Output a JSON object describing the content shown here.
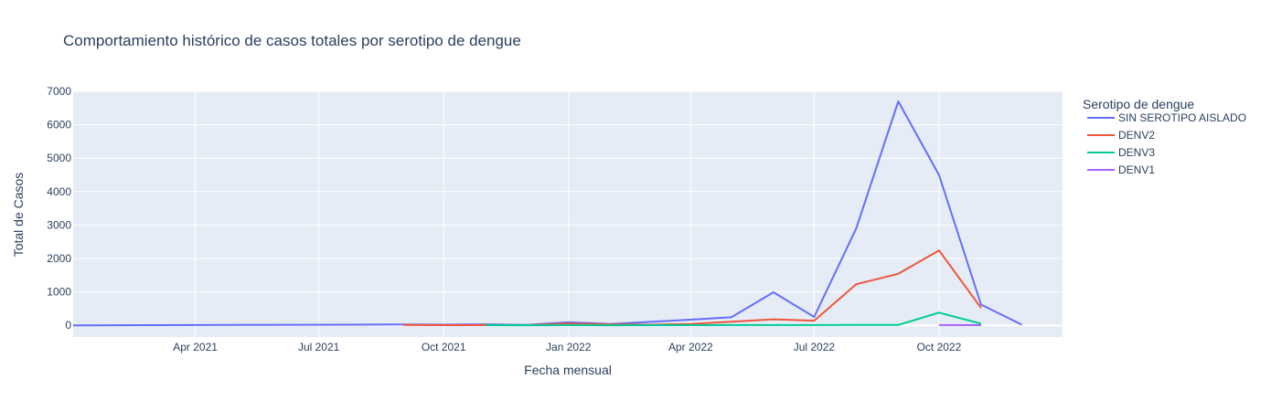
{
  "chart_data": {
    "type": "line",
    "title": "Comportamiento histórico de casos totales por serotipo de dengue",
    "xlabel": "Fecha mensual",
    "ylabel": "Total de Casos",
    "legend_title": "Serotipo de dengue",
    "legend_position": "right",
    "grid": true,
    "background_color": "#e5ecf6",
    "xlim": [
      "2021-01-01",
      "2022-12-31"
    ],
    "ylim": [
      -350,
      7000
    ],
    "x_ticks": [
      {
        "date": "2021-04-01",
        "label": "Apr 2021"
      },
      {
        "date": "2021-07-01",
        "label": "Jul 2021"
      },
      {
        "date": "2021-10-01",
        "label": "Oct 2021"
      },
      {
        "date": "2022-01-01",
        "label": "Jan 2022"
      },
      {
        "date": "2022-04-01",
        "label": "Apr 2022"
      },
      {
        "date": "2022-07-01",
        "label": "Jul 2022"
      },
      {
        "date": "2022-10-01",
        "label": "Oct 2022"
      }
    ],
    "y_ticks": [
      {
        "value": 0,
        "label": "0"
      },
      {
        "value": 1000,
        "label": "1000"
      },
      {
        "value": 2000,
        "label": "2000"
      },
      {
        "value": 3000,
        "label": "3000"
      },
      {
        "value": 4000,
        "label": "4000"
      },
      {
        "value": 5000,
        "label": "5000"
      },
      {
        "value": 6000,
        "label": "6000"
      },
      {
        "value": 7000,
        "label": "7000"
      }
    ],
    "series": [
      {
        "name": "SIN SEROTIPO AISLADO",
        "color": "#636efa",
        "points": [
          [
            "2021-01-01",
            1
          ],
          [
            "2021-09-01",
            25
          ],
          [
            "2021-10-01",
            20
          ],
          [
            "2021-11-01",
            30
          ],
          [
            "2021-12-01",
            10
          ],
          [
            "2022-01-01",
            90
          ],
          [
            "2022-02-01",
            40
          ],
          [
            "2022-03-01",
            100
          ],
          [
            "2022-04-01",
            170
          ],
          [
            "2022-05-01",
            240
          ],
          [
            "2022-06-01",
            990
          ],
          [
            "2022-07-01",
            250
          ],
          [
            "2022-08-01",
            2900
          ],
          [
            "2022-09-01",
            6700
          ],
          [
            "2022-10-01",
            4500
          ],
          [
            "2022-11-01",
            620
          ],
          [
            "2022-12-01",
            20
          ]
        ]
      },
      {
        "name": "DENV2",
        "color": "#ef553b",
        "points": [
          [
            "2021-09-01",
            10
          ],
          [
            "2021-10-01",
            5
          ],
          [
            "2021-11-01",
            8
          ],
          [
            "2021-12-01",
            5
          ],
          [
            "2022-01-01",
            50
          ],
          [
            "2022-02-01",
            30
          ],
          [
            "2022-03-01",
            20
          ],
          [
            "2022-04-01",
            40
          ],
          [
            "2022-05-01",
            110
          ],
          [
            "2022-06-01",
            180
          ],
          [
            "2022-07-01",
            140
          ],
          [
            "2022-08-01",
            1230
          ],
          [
            "2022-09-01",
            1540
          ],
          [
            "2022-10-01",
            2240
          ],
          [
            "2022-11-01",
            520
          ]
        ]
      },
      {
        "name": "DENV3",
        "color": "#00cc96",
        "points": [
          [
            "2021-11-01",
            5
          ],
          [
            "2021-12-01",
            3
          ],
          [
            "2022-01-01",
            5
          ],
          [
            "2022-02-01",
            3
          ],
          [
            "2022-03-01",
            4
          ],
          [
            "2022-04-01",
            5
          ],
          [
            "2022-05-01",
            8
          ],
          [
            "2022-06-01",
            8
          ],
          [
            "2022-07-01",
            8
          ],
          [
            "2022-08-01",
            10
          ],
          [
            "2022-09-01",
            10
          ],
          [
            "2022-10-01",
            380
          ],
          [
            "2022-11-01",
            50
          ]
        ]
      },
      {
        "name": "DENV1",
        "color": "#ab63fa",
        "points": [
          [
            "2022-10-01",
            8
          ],
          [
            "2022-11-01",
            5
          ]
        ]
      }
    ]
  }
}
